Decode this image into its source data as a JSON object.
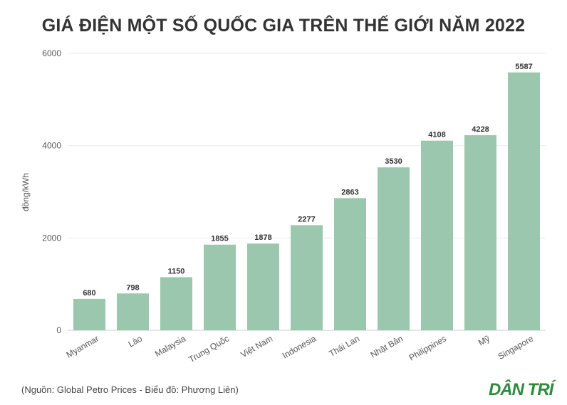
{
  "chart_data": {
    "type": "bar",
    "title": "GIÁ ĐIỆN MỘT SỐ QUỐC GIA TRÊN THẾ GIỚI NĂM 2022",
    "ylabel": "đồng/kWh",
    "xlabel": "",
    "categories": [
      "Myanmar",
      "Lào",
      "Malaysia",
      "Trung Quốc",
      "Việt Nam",
      "Indonesia",
      "Thái Lan",
      "Nhật Bản",
      "Philippines",
      "Mỹ",
      "Singapore"
    ],
    "values": [
      680,
      798,
      1150,
      1855,
      1878,
      2277,
      2863,
      3530,
      4108,
      4228,
      5587
    ],
    "ylim": [
      0,
      6000
    ],
    "yticks": [
      0,
      2000,
      4000,
      6000
    ],
    "grid": true,
    "bar_color": "#9bc7ae"
  },
  "source": "(Nguồn: Global Petro Prices - Biểu đồ: Phương Liên)",
  "logo": {
    "text": "DÂN TRÍ",
    "color": "#2e8b3e"
  }
}
